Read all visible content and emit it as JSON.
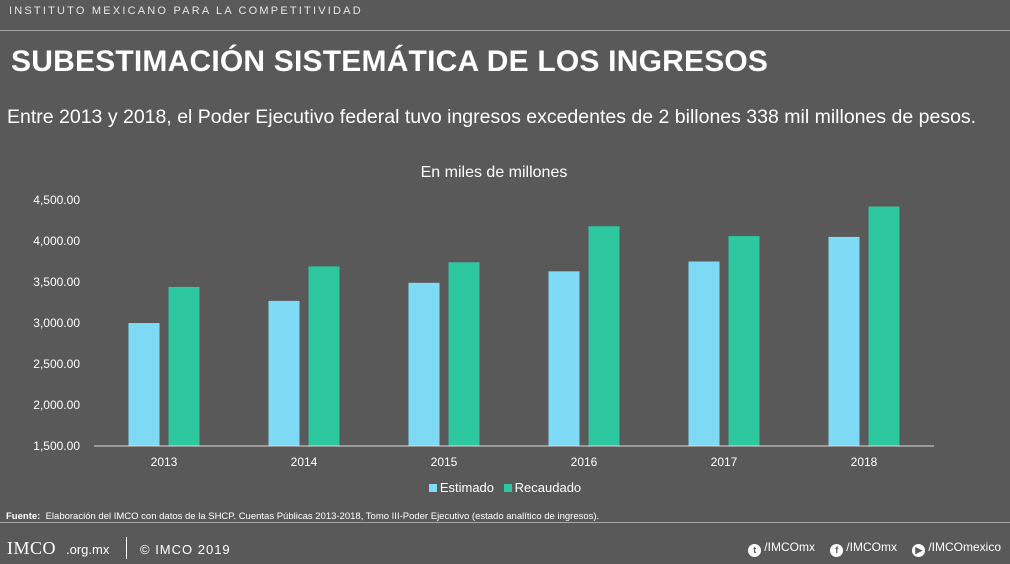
{
  "header": {
    "org_name": "INSTITUTO MEXICANO PARA LA COMPETITIVIDAD",
    "title": "SUBESTIMACIÓN SISTEMÁTICA DE LOS INGRESOS",
    "subtitle": "Entre 2013 y 2018, el Poder Ejecutivo federal tuvo ingresos excedentes de 2 billones 338 mil millones de pesos."
  },
  "chart_data": {
    "type": "bar",
    "title": "En miles de millones",
    "categories": [
      "2013",
      "2014",
      "2015",
      "2016",
      "2017",
      "2018"
    ],
    "series": [
      {
        "name": "Estimado",
        "color": "#7fdbf5",
        "values": [
          3000,
          3270,
          3490,
          3630,
          3750,
          4050
        ]
      },
      {
        "name": "Recaudado",
        "color": "#2ec8a0",
        "values": [
          3440,
          3690,
          3740,
          4180,
          4060,
          4420
        ]
      }
    ],
    "ylim": [
      1500,
      4500
    ],
    "yticks": [
      1500,
      2000,
      2500,
      3000,
      3500,
      4000,
      4500
    ],
    "ytick_labels": [
      "1,500.00",
      "2,000.00",
      "2,500.00",
      "3,000.00",
      "3,500.00",
      "4,000.00",
      "4,500.00"
    ],
    "xlabel": "",
    "ylabel": "",
    "legend": "bottom-center"
  },
  "source": {
    "label": "Fuente",
    "text": "Elaboración del IMCO con datos de la SHCP. Cuentas Públicas 2013-2018, Tomo III-Poder Ejecutivo (estado analítico de ingresos)."
  },
  "footer": {
    "logo": "IMCO",
    "site": ".org.mx",
    "copyright": "© IMCO 2019",
    "social": [
      {
        "icon": "twitter-icon",
        "glyph": "t",
        "label": "/IMCOmx"
      },
      {
        "icon": "facebook-icon",
        "glyph": "f",
        "label": "/IMCOmx"
      },
      {
        "icon": "youtube-icon",
        "glyph": "▶",
        "label": "/IMCOmexico"
      }
    ]
  }
}
